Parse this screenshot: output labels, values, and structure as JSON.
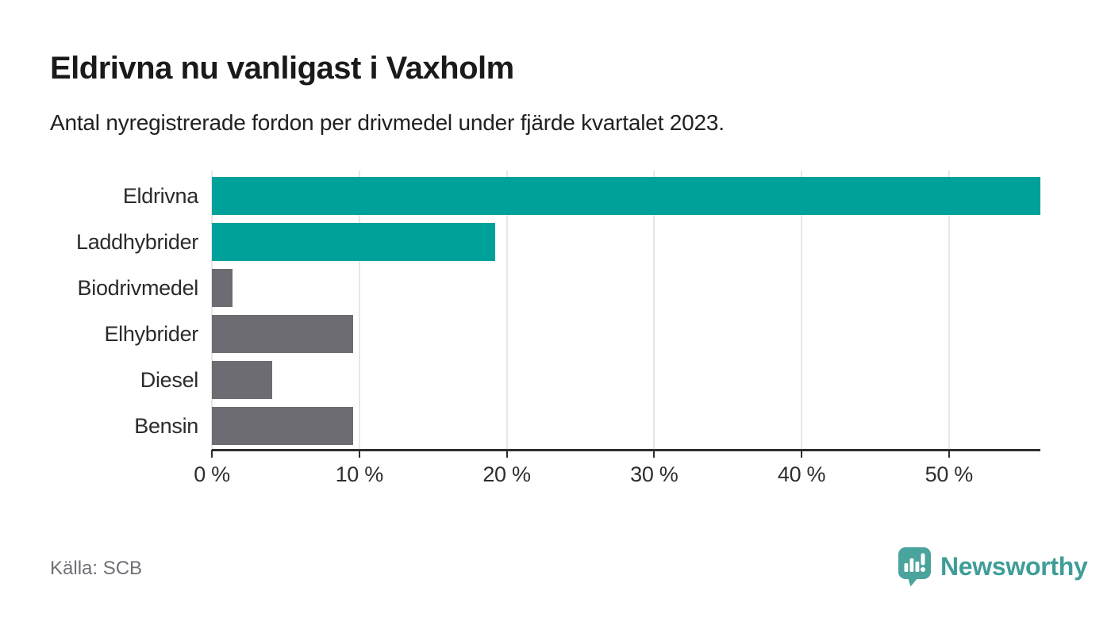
{
  "header": {
    "title": "Eldrivna nu vanligast i Vaxholm",
    "subtitle": "Antal nyregistrerade fordon per drivmedel under fjärde kvartalet 2023."
  },
  "footer": {
    "source": "Källa: SCB",
    "brand": "Newsworthy"
  },
  "colors": {
    "accent_teal": "#00a19a",
    "bar_gray": "#6d6c72",
    "logo_teal": "#4ba39e",
    "brand_text_teal": "#3f9d98",
    "gridline": "#e7e7e7",
    "axis": "#2e2e2e"
  },
  "chart_data": {
    "type": "bar",
    "orientation": "horizontal",
    "title": "Eldrivna nu vanligast i Vaxholm",
    "subtitle": "Antal nyregistrerade fordon per drivmedel under fjärde kvartalet 2023.",
    "categories": [
      "Eldrivna",
      "Laddhybrider",
      "Biodrivmedel",
      "Elhybrider",
      "Diesel",
      "Bensin"
    ],
    "values": [
      56.2,
      19.2,
      1.4,
      9.6,
      4.1,
      9.6
    ],
    "unit": "%",
    "bar_colors": [
      "#00a19a",
      "#00a19a",
      "#6d6c72",
      "#6d6c72",
      "#6d6c72",
      "#6d6c72"
    ],
    "x_ticks": [
      0,
      10,
      20,
      30,
      40,
      50
    ],
    "x_tick_labels": [
      "0 %",
      "10 %",
      "20 %",
      "30 %",
      "40 %",
      "50 %"
    ],
    "xlim": [
      0,
      56.2
    ],
    "xlabel": "",
    "ylabel": "",
    "grid": true,
    "legend": false
  }
}
